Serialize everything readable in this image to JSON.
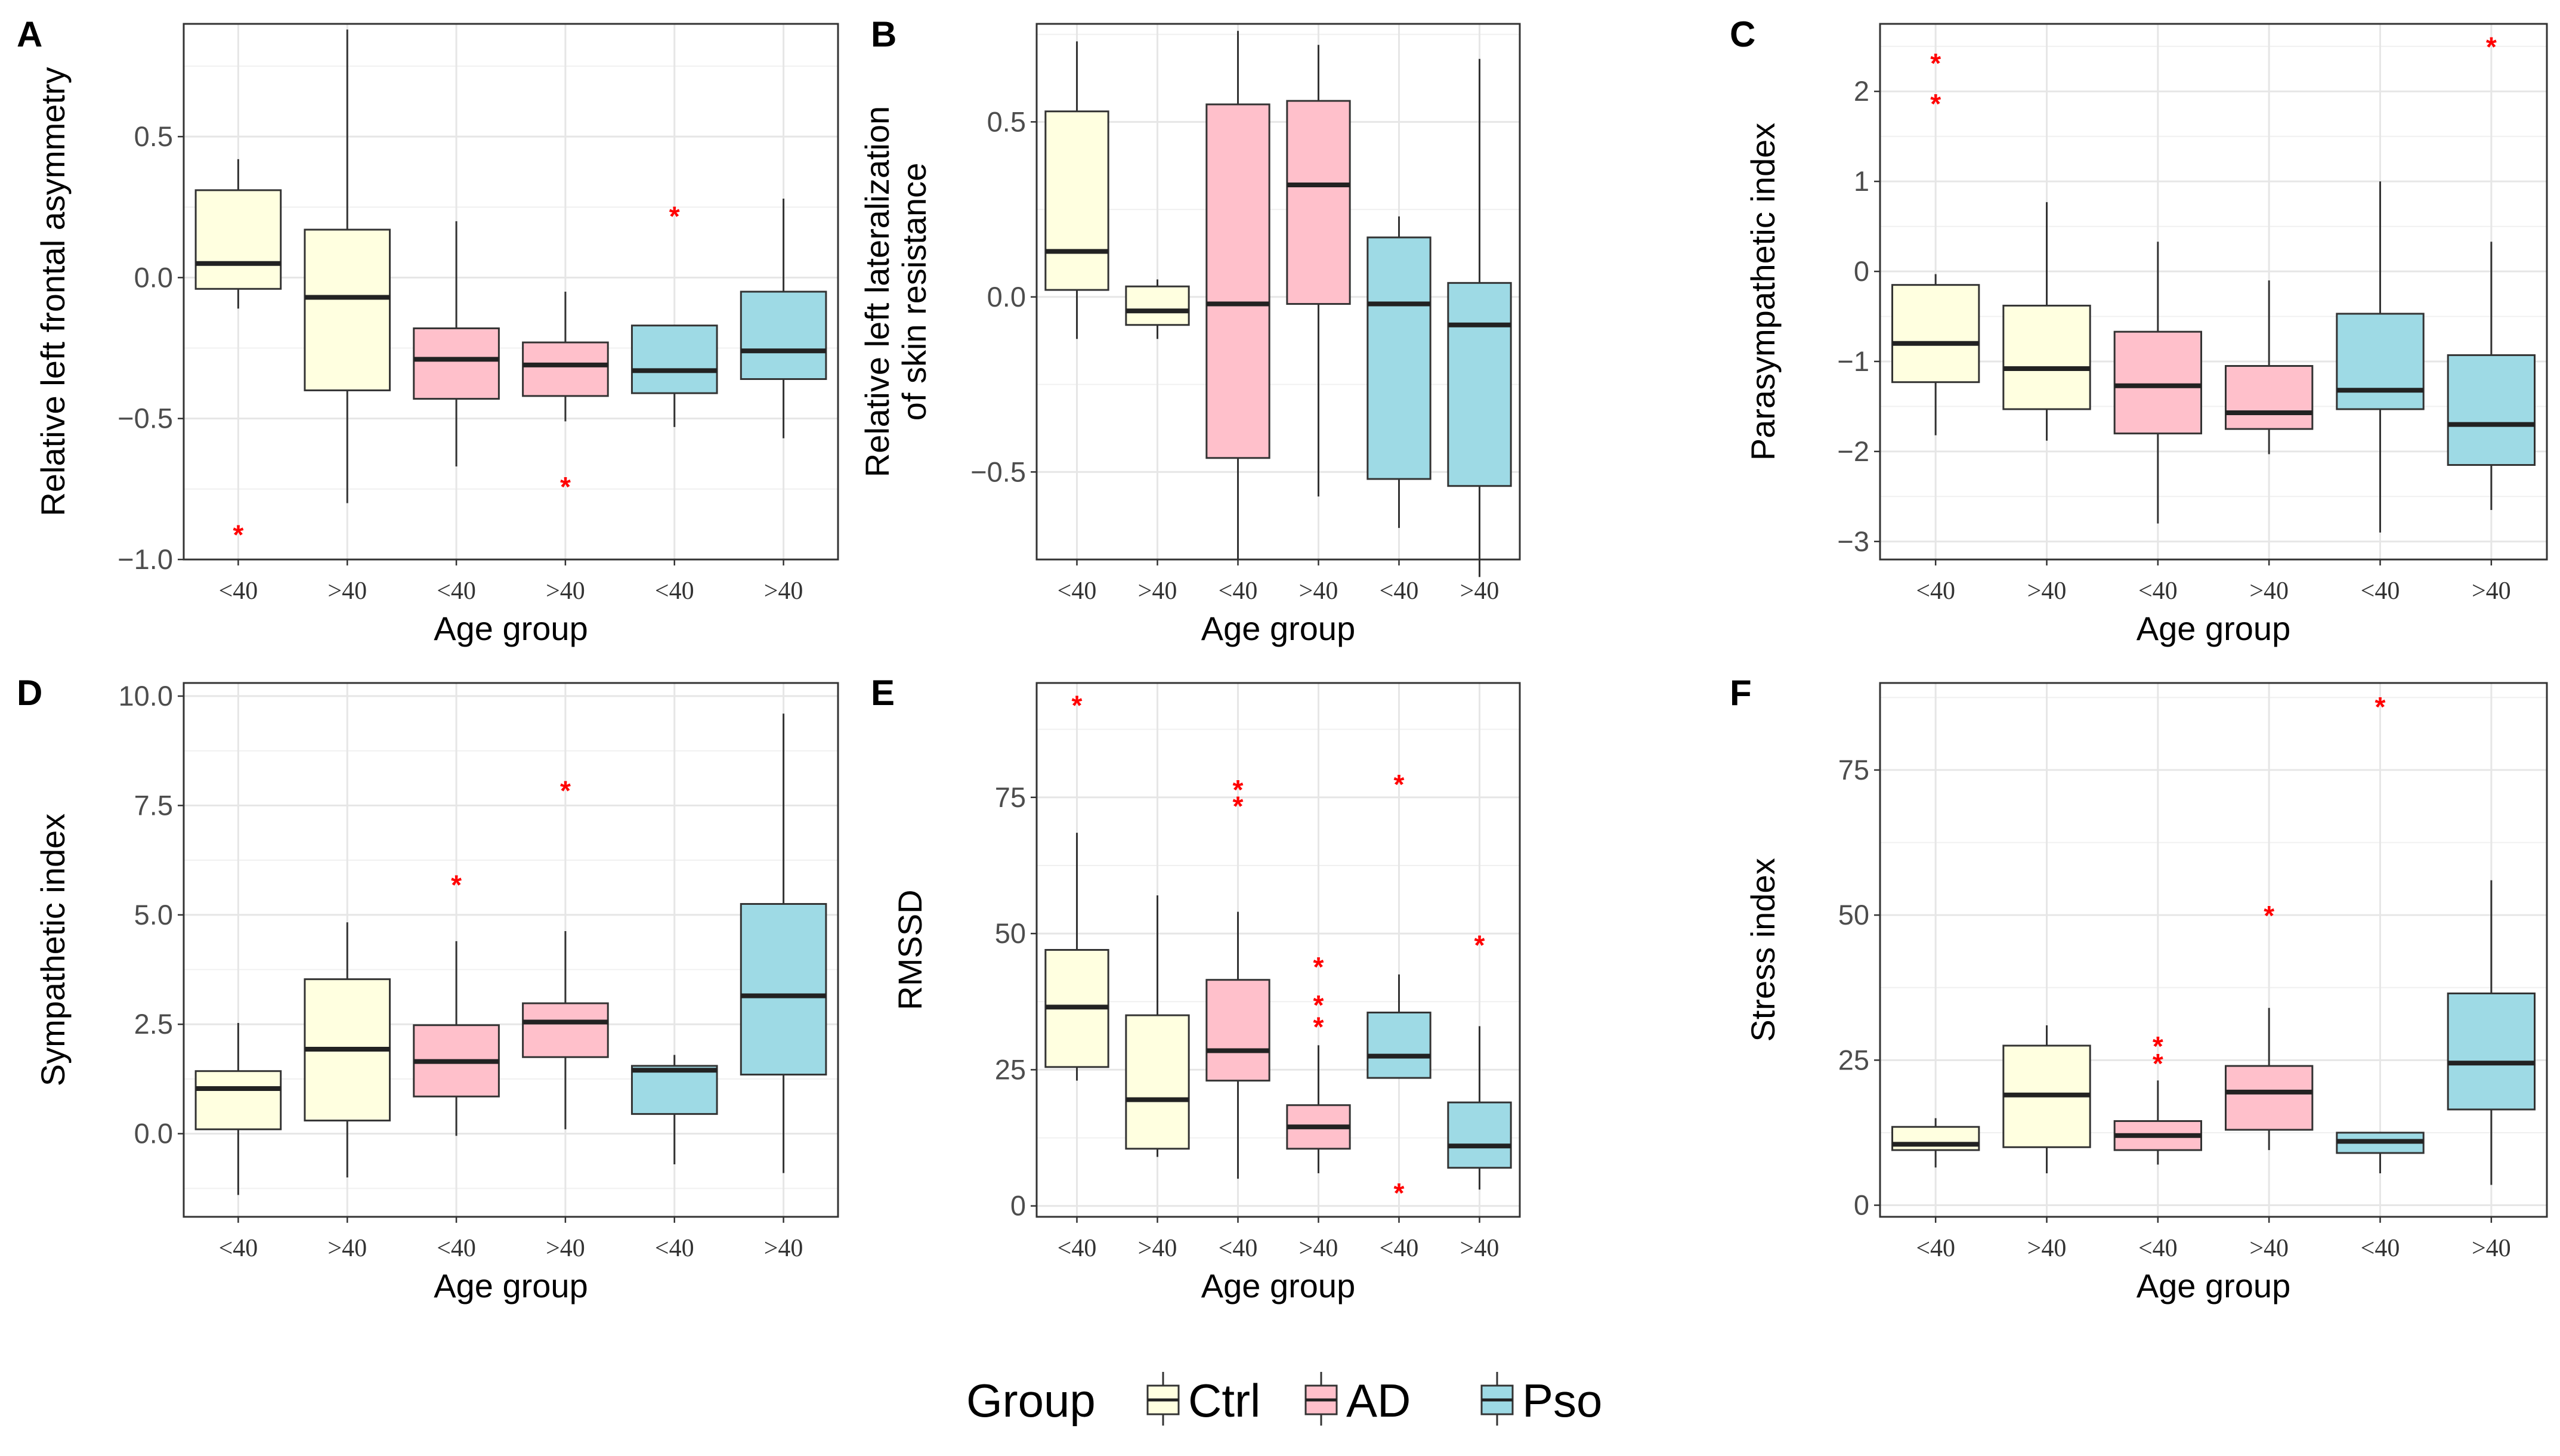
{
  "legend": {
    "title": "Group",
    "items": [
      {
        "label": "Ctrl",
        "color": "#ffffe0"
      },
      {
        "label": "AD",
        "color": "#ffc0cb"
      },
      {
        "label": "Pso",
        "color": "#9edae5"
      }
    ]
  },
  "chart_data": [
    {
      "type": "box",
      "panel": "A",
      "ylabel": "Relative left frontal asymmetry",
      "xlabel": "Age group",
      "ylim": [
        -1.0,
        0.9
      ],
      "yticks": [
        -1.0,
        -0.5,
        0.0,
        0.5
      ],
      "ytick_labels": [
        "−1.0",
        "−0.5",
        "0.0",
        "0.5"
      ],
      "categories": [
        "<40",
        ">40",
        "<40",
        ">40",
        "<40",
        ">40"
      ],
      "groups": [
        "Ctrl",
        "Ctrl",
        "AD",
        "AD",
        "Pso",
        "Pso"
      ],
      "boxes": [
        {
          "min": -0.11,
          "q1": -0.04,
          "median": 0.05,
          "q3": 0.31,
          "max": 0.42,
          "outliers": [
            -0.91
          ]
        },
        {
          "min": -0.8,
          "q1": -0.4,
          "median": -0.07,
          "q3": 0.17,
          "max": 0.88,
          "outliers": []
        },
        {
          "min": -0.67,
          "q1": -0.43,
          "median": -0.29,
          "q3": -0.18,
          "max": 0.2,
          "outliers": []
        },
        {
          "min": -0.51,
          "q1": -0.42,
          "median": -0.31,
          "q3": -0.23,
          "max": -0.05,
          "outliers": [
            -0.74
          ]
        },
        {
          "min": -0.53,
          "q1": -0.41,
          "median": -0.33,
          "q3": -0.17,
          "max": -0.17,
          "outliers": [
            0.22
          ]
        },
        {
          "min": -0.57,
          "q1": -0.36,
          "median": -0.26,
          "q3": -0.05,
          "max": 0.28,
          "outliers": []
        }
      ]
    },
    {
      "type": "box",
      "panel": "B",
      "ylabel": "Relative left lateralization of skin resistance",
      "ylabel_lines": [
        "Relative left lateralization",
        "of skin resistance"
      ],
      "xlabel": "Age group",
      "ylim": [
        -0.75,
        0.78
      ],
      "yticks": [
        -0.5,
        0.0,
        0.5
      ],
      "ytick_labels": [
        "−0.5",
        "0.0",
        "0.5"
      ],
      "categories": [
        "<40",
        ">40",
        "<40",
        ">40",
        "<40",
        ">40"
      ],
      "groups": [
        "Ctrl",
        "Ctrl",
        "AD",
        "AD",
        "Pso",
        "Pso"
      ],
      "boxes": [
        {
          "min": -0.12,
          "q1": 0.02,
          "median": 0.13,
          "q3": 0.53,
          "max": 0.73,
          "outliers": []
        },
        {
          "min": -0.12,
          "q1": -0.08,
          "median": -0.04,
          "q3": 0.03,
          "max": 0.05,
          "outliers": []
        },
        {
          "min": -0.75,
          "q1": -0.46,
          "median": -0.02,
          "q3": 0.55,
          "max": 0.76,
          "outliers": []
        },
        {
          "min": -0.57,
          "q1": -0.02,
          "median": 0.32,
          "q3": 0.56,
          "max": 0.72,
          "outliers": []
        },
        {
          "min": -0.66,
          "q1": -0.52,
          "median": -0.02,
          "q3": 0.17,
          "max": 0.23,
          "outliers": []
        },
        {
          "min": -0.8,
          "q1": -0.54,
          "median": -0.08,
          "q3": 0.04,
          "max": 0.68,
          "outliers": []
        }
      ]
    },
    {
      "type": "box",
      "panel": "C",
      "ylabel": "Parasympathetic index",
      "xlabel": "Age group",
      "ylim": [
        -3.2,
        2.75
      ],
      "yticks": [
        -3,
        -2,
        -1,
        0,
        1,
        2
      ],
      "ytick_labels": [
        "−3",
        "−2",
        "−1",
        "0",
        "1",
        "2"
      ],
      "categories": [
        "<40",
        ">40",
        "<40",
        ">40",
        "<40",
        ">40"
      ],
      "groups": [
        "Ctrl",
        "Ctrl",
        "AD",
        "AD",
        "Pso",
        "Pso"
      ],
      "boxes": [
        {
          "min": -1.82,
          "q1": -1.23,
          "median": -0.8,
          "q3": -0.15,
          "max": -0.03,
          "outliers": [
            2.32,
            1.87
          ]
        },
        {
          "min": -1.88,
          "q1": -1.53,
          "median": -1.08,
          "q3": -0.38,
          "max": 0.77,
          "outliers": []
        },
        {
          "min": -2.8,
          "q1": -1.8,
          "median": -1.27,
          "q3": -0.67,
          "max": 0.33,
          "outliers": []
        },
        {
          "min": -2.03,
          "q1": -1.75,
          "median": -1.57,
          "q3": -1.05,
          "max": -0.1,
          "outliers": []
        },
        {
          "min": -2.9,
          "q1": -1.53,
          "median": -1.32,
          "q3": -0.47,
          "max": 1.0,
          "outliers": []
        },
        {
          "min": -2.65,
          "q1": -2.15,
          "median": -1.7,
          "q3": -0.93,
          "max": 0.33,
          "outliers": [
            2.5
          ]
        }
      ]
    },
    {
      "type": "box",
      "panel": "D",
      "ylabel": "Sympathetic index",
      "xlabel": "Age group",
      "ylim": [
        -1.9,
        10.3
      ],
      "yticks": [
        0.0,
        2.5,
        5.0,
        7.5,
        10.0
      ],
      "ytick_labels": [
        "0.0",
        "2.5",
        "5.0",
        "7.5",
        "10.0"
      ],
      "categories": [
        "<40",
        ">40",
        "<40",
        ">40",
        "<40",
        ">40"
      ],
      "groups": [
        "Ctrl",
        "Ctrl",
        "AD",
        "AD",
        "Pso",
        "Pso"
      ],
      "boxes": [
        {
          "min": -1.4,
          "q1": 0.1,
          "median": 1.03,
          "q3": 1.43,
          "max": 2.53,
          "outliers": []
        },
        {
          "min": -1.0,
          "q1": 0.3,
          "median": 1.93,
          "q3": 3.53,
          "max": 4.83,
          "outliers": []
        },
        {
          "min": -0.05,
          "q1": 0.85,
          "median": 1.65,
          "q3": 2.48,
          "max": 4.4,
          "outliers": [
            5.7
          ]
        },
        {
          "min": 0.1,
          "q1": 1.75,
          "median": 2.55,
          "q3": 2.98,
          "max": 4.63,
          "outliers": [
            7.85
          ]
        },
        {
          "min": -0.7,
          "q1": 0.45,
          "median": 1.45,
          "q3": 1.55,
          "max": 1.8,
          "outliers": []
        },
        {
          "min": -0.9,
          "q1": 1.35,
          "median": 3.15,
          "q3": 5.25,
          "max": 9.6,
          "outliers": []
        }
      ]
    },
    {
      "type": "box",
      "panel": "E",
      "ylabel": "RMSSD",
      "xlabel": "Age group",
      "ylim": [
        -2,
        96
      ],
      "yticks": [
        0,
        25,
        50,
        75
      ],
      "ytick_labels": [
        "0",
        "25",
        "50",
        "75"
      ],
      "categories": [
        "<40",
        ">40",
        "<40",
        ">40",
        "<40",
        ">40"
      ],
      "groups": [
        "Ctrl",
        "Ctrl",
        "AD",
        "AD",
        "Pso",
        "Pso"
      ],
      "boxes": [
        {
          "min": 23,
          "q1": 25.5,
          "median": 36.5,
          "q3": 47,
          "max": 68.5,
          "outliers": [
            92
          ]
        },
        {
          "min": 9,
          "q1": 10.5,
          "median": 19.5,
          "q3": 35,
          "max": 57,
          "outliers": []
        },
        {
          "min": 5,
          "q1": 23,
          "median": 28.5,
          "q3": 41.5,
          "max": 54,
          "outliers": [
            76.5,
            73.5
          ]
        },
        {
          "min": 6,
          "q1": 10.5,
          "median": 14.5,
          "q3": 18.5,
          "max": 29.5,
          "outliers": [
            44,
            37,
            33
          ]
        },
        {
          "min": 23.5,
          "q1": 23.5,
          "median": 27.5,
          "q3": 35.5,
          "max": 42.5,
          "outliers": [
            77.5,
            2.5
          ]
        },
        {
          "min": 3,
          "q1": 7,
          "median": 11,
          "q3": 19,
          "max": 33,
          "outliers": [
            48
          ]
        }
      ]
    },
    {
      "type": "box",
      "panel": "F",
      "ylabel": "Stress index",
      "xlabel": "Age group",
      "ylim": [
        -2,
        90
      ],
      "yticks": [
        0,
        25,
        50,
        75
      ],
      "ytick_labels": [
        "0",
        "25",
        "50",
        "75"
      ],
      "categories": [
        "<40",
        ">40",
        "<40",
        ">40",
        "<40",
        ">40"
      ],
      "groups": [
        "Ctrl",
        "Ctrl",
        "AD",
        "AD",
        "Pso",
        "Pso"
      ],
      "boxes": [
        {
          "min": 6.5,
          "q1": 9.5,
          "median": 10.5,
          "q3": 13.5,
          "max": 15,
          "outliers": []
        },
        {
          "min": 5.5,
          "q1": 10,
          "median": 19,
          "q3": 27.5,
          "max": 31,
          "outliers": []
        },
        {
          "min": 7,
          "q1": 9.5,
          "median": 12,
          "q3": 14.5,
          "max": 21.5,
          "outliers": [
            27.5,
            24.5
          ]
        },
        {
          "min": 9.5,
          "q1": 13,
          "median": 19.5,
          "q3": 24,
          "max": 34,
          "outliers": [
            50
          ]
        },
        {
          "min": 5.5,
          "q1": 9,
          "median": 11,
          "q3": 12.5,
          "max": 12.5,
          "outliers": [
            86
          ]
        },
        {
          "min": 3.5,
          "q1": 16.5,
          "median": 24.5,
          "q3": 36.5,
          "max": 56,
          "outliers": []
        }
      ]
    }
  ]
}
